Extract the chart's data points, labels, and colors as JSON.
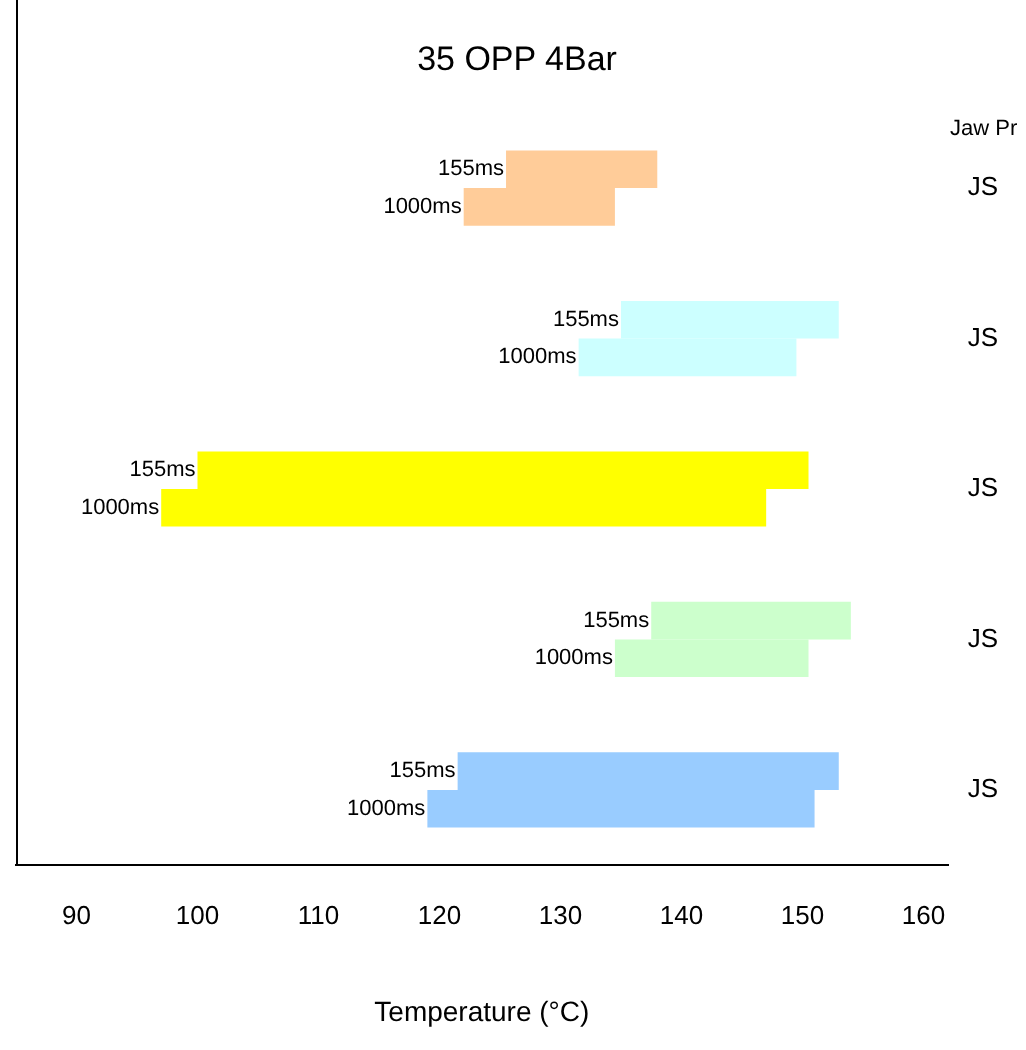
{
  "chart_data": {
    "type": "bar",
    "orientation": "horizontal",
    "title": "35 OPP 4Bar",
    "xlabel": "Temperature (°C)",
    "ylabel": "Jaw Pr",
    "categories": [
      "JS",
      "JS",
      "JS",
      "JS",
      "JS"
    ],
    "series": [
      {
        "name": "155ms",
        "base": [
          125.5,
          135,
          100,
          137.5,
          121.5
        ],
        "values": [
          12.5,
          18,
          50.5,
          16.5,
          31.5
        ],
        "colors": [
          "#ffcc99",
          "#ccffff",
          "#ffff00",
          "#ccffcc",
          "#99ccff"
        ]
      },
      {
        "name": "1000ms",
        "base": [
          122,
          131.5,
          97,
          134.5,
          119
        ],
        "values": [
          12.5,
          18,
          50,
          16,
          32
        ],
        "colors": [
          "#ffcc99",
          "#ccffff",
          "#ffff00",
          "#ccffcc",
          "#99ccff"
        ]
      }
    ],
    "xlim": [
      85,
      162
    ],
    "xticks": [
      90,
      100,
      110,
      120,
      130,
      140,
      150,
      160
    ],
    "grid": false,
    "legend": false
  }
}
